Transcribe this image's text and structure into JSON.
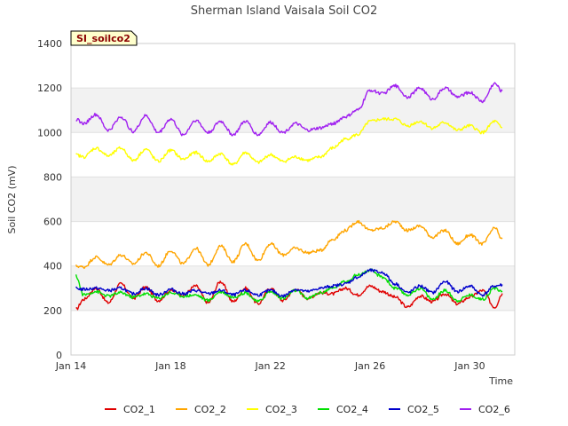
{
  "chart_data": {
    "type": "line",
    "title": "Sherman Island Vaisala Soil CO2",
    "xlabel": "Time",
    "ylabel": "Soil CO2 (mV)",
    "tag": "SI_soilco2",
    "xlim": [
      0,
      17.8
    ],
    "ylim": [
      0,
      1400
    ],
    "yticks": [
      0,
      200,
      400,
      600,
      800,
      1000,
      1200,
      1400
    ],
    "xticks": [
      {
        "label": "Jan 14",
        "day": 0
      },
      {
        "label": "Jan 18",
        "day": 4
      },
      {
        "label": "Jan 22",
        "day": 8
      },
      {
        "label": "Jan 26",
        "day": 12
      },
      {
        "label": "Jan 30",
        "day": 16
      }
    ],
    "grid": true,
    "legend_position": "bottom",
    "x": [
      0.2,
      0.5,
      1.0,
      1.5,
      2.0,
      2.5,
      3.0,
      3.5,
      4.0,
      4.5,
      5.0,
      5.5,
      6.0,
      6.5,
      7.0,
      7.5,
      8.0,
      8.5,
      9.0,
      9.5,
      10.0,
      10.5,
      11.0,
      11.5,
      12.0,
      12.5,
      13.0,
      13.5,
      14.0,
      14.5,
      15.0,
      15.5,
      16.0,
      16.5,
      17.0,
      17.3
    ],
    "series": [
      {
        "name": "CO2_1",
        "color": "#e00000",
        "values": [
          205,
          250,
          300,
          235,
          320,
          255,
          305,
          245,
          290,
          270,
          310,
          235,
          330,
          240,
          300,
          230,
          300,
          245,
          295,
          255,
          280,
          275,
          300,
          270,
          310,
          285,
          260,
          215,
          265,
          240,
          275,
          230,
          260,
          290,
          215,
          275
        ]
      },
      {
        "name": "CO2_2",
        "color": "#ffa500",
        "values": [
          400,
          395,
          440,
          405,
          450,
          410,
          460,
          400,
          470,
          410,
          480,
          405,
          490,
          420,
          500,
          425,
          500,
          450,
          480,
          460,
          470,
          520,
          560,
          600,
          560,
          570,
          600,
          560,
          580,
          530,
          560,
          500,
          540,
          500,
          570,
          520
        ]
      },
      {
        "name": "CO2_3",
        "color": "#ffff00",
        "values": [
          900,
          890,
          930,
          895,
          930,
          875,
          925,
          870,
          920,
          880,
          910,
          870,
          905,
          855,
          910,
          865,
          900,
          870,
          890,
          875,
          890,
          930,
          970,
          990,
          1050,
          1060,
          1060,
          1030,
          1050,
          1020,
          1045,
          1010,
          1030,
          1000,
          1050,
          1020
        ]
      },
      {
        "name": "CO2_4",
        "color": "#00e000",
        "values": [
          355,
          270,
          285,
          265,
          280,
          260,
          275,
          255,
          280,
          265,
          270,
          245,
          285,
          260,
          280,
          240,
          285,
          255,
          290,
          255,
          280,
          300,
          330,
          360,
          380,
          350,
          300,
          270,
          300,
          250,
          290,
          245,
          270,
          250,
          300,
          285
        ]
      },
      {
        "name": "CO2_5",
        "color": "#0000cc",
        "values": [
          300,
          295,
          300,
          290,
          300,
          275,
          300,
          270,
          295,
          275,
          290,
          275,
          290,
          270,
          290,
          270,
          290,
          265,
          295,
          285,
          300,
          310,
          320,
          350,
          380,
          370,
          320,
          280,
          310,
          280,
          330,
          285,
          310,
          270,
          310,
          315
        ]
      },
      {
        "name": "CO2_6",
        "color": "#a020f0",
        "values": [
          1060,
          1040,
          1080,
          1010,
          1070,
          1005,
          1075,
          1000,
          1060,
          990,
          1055,
          1000,
          1050,
          990,
          1050,
          990,
          1045,
          1000,
          1040,
          1010,
          1020,
          1040,
          1070,
          1100,
          1190,
          1175,
          1210,
          1160,
          1200,
          1150,
          1200,
          1160,
          1180,
          1140,
          1220,
          1185
        ]
      }
    ]
  }
}
